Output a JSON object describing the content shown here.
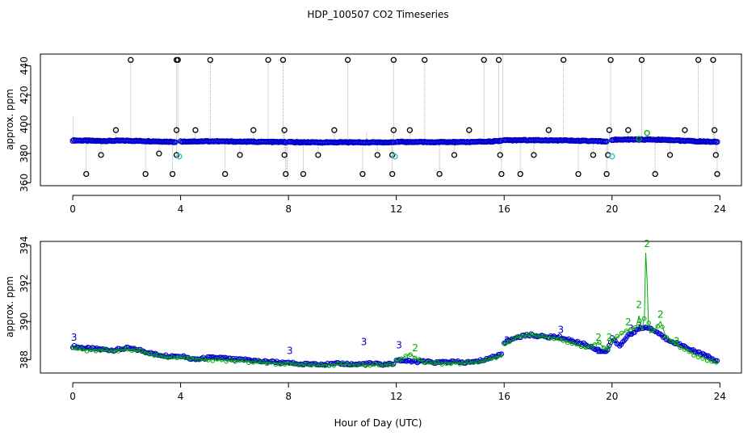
{
  "chart_data": [
    {
      "type": "scatter",
      "title": "HDP_100507  CO2 Timeseries",
      "xlabel": "",
      "ylabel": "approx. ppm",
      "xlim": [
        -1.2,
        24.8
      ],
      "ylim": [
        358,
        448
      ],
      "xticks": [
        0,
        4,
        8,
        12,
        16,
        20,
        24
      ],
      "yticks": [
        360,
        380,
        400,
        420,
        440
      ],
      "colors": {
        "baseline": "#0000cc",
        "outlier": "#000000",
        "cyan": "#33cccc",
        "green": "#00aa00",
        "spike": "#aaaaaa"
      },
      "baseline_segments": [
        {
          "x": [
            0.0,
            1.0,
            2.0,
            3.0,
            3.8
          ],
          "y": [
            389.0,
            388.6,
            388.8,
            388.4,
            388.0
          ]
        },
        {
          "x": [
            4.0,
            5.0,
            6.0,
            7.0,
            7.9
          ],
          "y": [
            388.2,
            388.4,
            388.2,
            388.0,
            387.8
          ]
        },
        {
          "x": [
            8.0,
            9.0,
            10.0,
            11.0,
            11.9
          ],
          "y": [
            387.8,
            387.6,
            387.7,
            387.6,
            387.7
          ]
        },
        {
          "x": [
            12.0,
            13.0,
            14.0,
            15.0,
            15.9
          ],
          "y": [
            388.0,
            387.8,
            387.8,
            387.9,
            388.6
          ]
        },
        {
          "x": [
            16.0,
            17.0,
            18.0,
            19.0,
            19.8
          ],
          "y": [
            389.0,
            389.2,
            389.0,
            388.6,
            388.2
          ]
        },
        {
          "x": [
            20.0,
            21.0,
            22.0,
            23.0,
            23.9
          ],
          "y": [
            389.4,
            389.6,
            389.4,
            388.4,
            388.0
          ]
        }
      ],
      "outliers": [
        {
          "x": 0.5,
          "y": 366
        },
        {
          "x": 1.05,
          "y": 379
        },
        {
          "x": 1.6,
          "y": 396
        },
        {
          "x": 2.15,
          "y": 444
        },
        {
          "x": 2.7,
          "y": 366
        },
        {
          "x": 3.2,
          "y": 380
        },
        {
          "x": 3.7,
          "y": 366
        },
        {
          "x": 3.85,
          "y": 396
        },
        {
          "x": 3.85,
          "y": 444
        },
        {
          "x": 3.85,
          "y": 379
        },
        {
          "x": 3.9,
          "y": 444
        },
        {
          "x": 4.55,
          "y": 396
        },
        {
          "x": 5.1,
          "y": 444
        },
        {
          "x": 5.65,
          "y": 366
        },
        {
          "x": 6.2,
          "y": 379
        },
        {
          "x": 6.7,
          "y": 396
        },
        {
          "x": 7.25,
          "y": 444
        },
        {
          "x": 7.8,
          "y": 444
        },
        {
          "x": 7.85,
          "y": 396
        },
        {
          "x": 7.85,
          "y": 379
        },
        {
          "x": 7.9,
          "y": 366
        },
        {
          "x": 8.55,
          "y": 366
        },
        {
          "x": 9.1,
          "y": 379
        },
        {
          "x": 9.7,
          "y": 396
        },
        {
          "x": 10.2,
          "y": 444
        },
        {
          "x": 10.75,
          "y": 366
        },
        {
          "x": 11.3,
          "y": 379
        },
        {
          "x": 11.85,
          "y": 366
        },
        {
          "x": 11.9,
          "y": 396
        },
        {
          "x": 11.9,
          "y": 444
        },
        {
          "x": 11.85,
          "y": 379
        },
        {
          "x": 12.5,
          "y": 396
        },
        {
          "x": 13.05,
          "y": 444
        },
        {
          "x": 13.6,
          "y": 366
        },
        {
          "x": 14.15,
          "y": 379
        },
        {
          "x": 14.7,
          "y": 396
        },
        {
          "x": 15.25,
          "y": 444
        },
        {
          "x": 15.8,
          "y": 444
        },
        {
          "x": 15.85,
          "y": 379
        },
        {
          "x": 15.9,
          "y": 366
        },
        {
          "x": 16.6,
          "y": 366
        },
        {
          "x": 17.1,
          "y": 379
        },
        {
          "x": 17.65,
          "y": 396
        },
        {
          "x": 18.2,
          "y": 444
        },
        {
          "x": 18.75,
          "y": 366
        },
        {
          "x": 19.3,
          "y": 379
        },
        {
          "x": 19.8,
          "y": 366
        },
        {
          "x": 19.85,
          "y": 379
        },
        {
          "x": 19.9,
          "y": 396
        },
        {
          "x": 19.95,
          "y": 444
        },
        {
          "x": 20.6,
          "y": 396
        },
        {
          "x": 21.1,
          "y": 444
        },
        {
          "x": 21.6,
          "y": 366
        },
        {
          "x": 22.15,
          "y": 379
        },
        {
          "x": 22.7,
          "y": 396
        },
        {
          "x": 23.2,
          "y": 444
        },
        {
          "x": 23.75,
          "y": 444
        },
        {
          "x": 23.8,
          "y": 396
        },
        {
          "x": 23.85,
          "y": 379
        },
        {
          "x": 23.9,
          "y": 366
        }
      ],
      "cyan_points": [
        {
          "x": 3.95,
          "y": 378
        },
        {
          "x": 11.95,
          "y": 378
        },
        {
          "x": 20.0,
          "y": 378
        }
      ],
      "green_points": [
        {
          "x": 21.3,
          "y": 394
        },
        {
          "x": 21.0,
          "y": 390
        }
      ]
    },
    {
      "type": "line",
      "title": "",
      "xlabel": "Hour of Day (UTC)",
      "ylabel": "approx. ppm",
      "xlim": [
        -1.2,
        24.8
      ],
      "ylim": [
        387.3,
        394.2
      ],
      "xticks": [
        0,
        4,
        8,
        12,
        16,
        20,
        24
      ],
      "yticks": [
        388,
        390,
        392,
        394
      ],
      "series": [
        {
          "name": "blue",
          "color": "#0000cc",
          "label_char": "3",
          "segments": [
            {
              "x": [
                0.0,
                0.5,
                1.0,
                1.5,
                2.0,
                2.5,
                3.0,
                3.5,
                3.9
              ],
              "y": [
                388.7,
                388.6,
                388.55,
                388.5,
                388.6,
                388.5,
                388.3,
                388.2,
                388.2
              ]
            },
            {
              "x": [
                4.0,
                4.5,
                5.0,
                5.5,
                6.0,
                6.5,
                7.0,
                7.5,
                7.9
              ],
              "y": [
                388.2,
                388.0,
                388.1,
                388.1,
                388.0,
                388.0,
                387.9,
                387.9,
                387.8
              ]
            },
            {
              "x": [
                8.0,
                8.5,
                9.0,
                9.5,
                10.0,
                10.5,
                11.0,
                11.5,
                11.9
              ],
              "y": [
                387.85,
                387.75,
                387.8,
                387.75,
                387.8,
                387.75,
                387.8,
                387.75,
                387.8
              ]
            },
            {
              "x": [
                12.0,
                12.5,
                13.0,
                13.5,
                14.0,
                14.5,
                15.0,
                15.5,
                15.9
              ],
              "y": [
                388.0,
                387.9,
                387.9,
                387.85,
                387.9,
                387.85,
                387.9,
                388.1,
                388.3
              ]
            },
            {
              "x": [
                16.0,
                16.5,
                17.0,
                17.5,
                18.0,
                18.5,
                19.0,
                19.5,
                19.8,
                20.0,
                20.3,
                20.6,
                21.0,
                21.3,
                21.6,
                22.0,
                22.5,
                23.0,
                23.5,
                23.9
              ],
              "y": [
                388.9,
                389.2,
                389.3,
                389.2,
                389.2,
                389.0,
                388.8,
                388.5,
                388.4,
                389.1,
                388.7,
                389.3,
                389.6,
                389.7,
                389.5,
                389.1,
                388.8,
                388.5,
                388.2,
                387.9
              ]
            }
          ],
          "labels": [
            {
              "x": 0.05,
              "y": 389.0
            },
            {
              "x": 8.05,
              "y": 388.3
            },
            {
              "x": 10.8,
              "y": 388.75
            },
            {
              "x": 12.1,
              "y": 388.6
            },
            {
              "x": 16.1,
              "y": 388.85
            },
            {
              "x": 18.1,
              "y": 389.4
            },
            {
              "x": 19.5,
              "y": 388.3
            },
            {
              "x": 20.7,
              "y": 389.45
            },
            {
              "x": 21.0,
              "y": 389.6
            }
          ]
        },
        {
          "name": "green",
          "color": "#00aa00",
          "label_char": "2",
          "segments": [
            {
              "x": [
                0.0,
                0.5,
                1.0,
                1.5,
                2.0,
                2.5,
                3.0,
                3.5,
                3.9
              ],
              "y": [
                388.6,
                388.5,
                388.5,
                388.45,
                388.55,
                388.45,
                388.25,
                388.1,
                388.1
              ]
            },
            {
              "x": [
                4.0,
                5.0,
                6.0,
                7.0,
                7.9
              ],
              "y": [
                388.1,
                388.0,
                387.95,
                387.85,
                387.75
              ]
            },
            {
              "x": [
                8.0,
                9.0,
                10.0,
                11.0,
                11.9
              ],
              "y": [
                387.8,
                387.7,
                387.75,
                387.7,
                387.75
              ]
            },
            {
              "x": [
                12.0,
                12.5,
                13.0,
                14.0,
                15.0,
                15.9
              ],
              "y": [
                387.9,
                388.3,
                387.85,
                387.8,
                387.85,
                388.2
              ]
            },
            {
              "x": [
                16.0,
                16.5,
                17.0,
                18.0,
                19.0,
                19.5,
                19.8,
                20.0,
                20.5,
                20.9,
                21.0,
                21.1,
                21.2,
                21.25,
                21.3,
                21.35,
                21.4,
                21.6,
                21.8,
                22.0,
                22.5,
                23.0,
                23.9
              ],
              "y": [
                388.8,
                389.2,
                389.3,
                389.1,
                388.6,
                388.9,
                388.5,
                389.0,
                389.5,
                389.7,
                390.3,
                389.5,
                390.2,
                393.6,
                392.2,
                390.0,
                389.4,
                389.6,
                390.0,
                389.2,
                388.7,
                388.3,
                387.8
              ]
            }
          ],
          "labels": [
            {
              "x": 12.7,
              "y": 388.45
            },
            {
              "x": 19.5,
              "y": 389.0
            },
            {
              "x": 19.9,
              "y": 389.0
            },
            {
              "x": 20.6,
              "y": 389.8
            },
            {
              "x": 21.0,
              "y": 390.7
            },
            {
              "x": 21.3,
              "y": 393.9
            },
            {
              "x": 21.8,
              "y": 390.2
            },
            {
              "x": 22.4,
              "y": 388.8
            }
          ]
        }
      ]
    }
  ]
}
